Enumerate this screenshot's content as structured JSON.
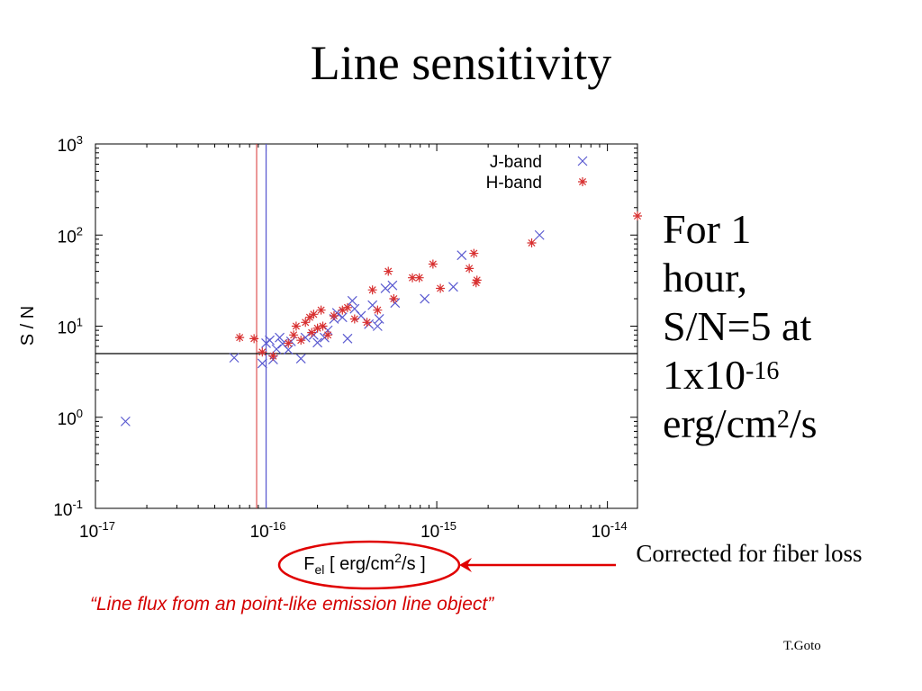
{
  "slide": {
    "title": "Line sensitivity",
    "note_lines": [
      "For 1",
      "hour,",
      "S/N=5 at"
    ],
    "note_flux": {
      "base": "1x10",
      "exp": "-16"
    },
    "note_unit": {
      "pre": "erg/cm",
      "exp": "2",
      "post": "/s"
    },
    "correction_note": "Corrected for fiber loss",
    "caption": "“Line flux from an point-like emission line object”",
    "credit": "T.Goto"
  },
  "colors": {
    "j_band": "#5a5ad0",
    "h_band": "#d83030",
    "annotation": "#e00000",
    "h_line": "#000000"
  },
  "chart_data": {
    "type": "scatter",
    "xlabel": {
      "main": "F",
      "sub": "el",
      "rest": " [ erg/cm",
      "sup": "2",
      "tail": "/s ]"
    },
    "ylabel": "S / N",
    "x_scale": "log",
    "y_scale": "log",
    "xlim": [
      1e-17,
      1.5e-14
    ],
    "ylim": [
      0.1,
      1000
    ],
    "x_ticks": [
      {
        "value": 1e-17,
        "base": "10",
        "exp": "-17"
      },
      {
        "value": 1e-16,
        "base": "10",
        "exp": "-16"
      },
      {
        "value": 1e-15,
        "base": "10",
        "exp": "-15"
      },
      {
        "value": 1e-14,
        "base": "10",
        "exp": "-14"
      }
    ],
    "y_ticks": [
      {
        "value": 0.1,
        "base": "10",
        "exp": "-1"
      },
      {
        "value": 1,
        "base": "10",
        "exp": "0"
      },
      {
        "value": 10,
        "base": "10",
        "exp": "1"
      },
      {
        "value": 100,
        "base": "10",
        "exp": "2"
      },
      {
        "value": 1000,
        "base": "10",
        "exp": "3"
      }
    ],
    "legend_position": "top-right",
    "reference_lines": {
      "horizontal_sn": 5,
      "vertical_j_flux": 1e-16,
      "vertical_h_flux": 8.8e-17
    },
    "series": [
      {
        "name": "J-band",
        "marker": "x",
        "points": [
          [
            1.5e-17,
            0.9
          ],
          [
            6.5e-17,
            4.5
          ],
          [
            9.5e-17,
            3.9
          ],
          [
            1e-16,
            6.5
          ],
          [
            1.05e-16,
            7.0
          ],
          [
            1.1e-16,
            4.3
          ],
          [
            1.15e-16,
            5.6
          ],
          [
            1.2e-16,
            7.5
          ],
          [
            1.25e-16,
            6.4
          ],
          [
            1.35e-16,
            5.5
          ],
          [
            1.4e-16,
            6.8
          ],
          [
            1.6e-16,
            4.4
          ],
          [
            1.7e-16,
            7.5
          ],
          [
            1.9e-16,
            8.0
          ],
          [
            2e-16,
            6.6
          ],
          [
            2.2e-16,
            7.5
          ],
          [
            2.3e-16,
            9.0
          ],
          [
            2.5e-16,
            12.0
          ],
          [
            2.6e-16,
            14.0
          ],
          [
            2.8e-16,
            12.5
          ],
          [
            3e-16,
            7.3
          ],
          [
            3.2e-16,
            19.0
          ],
          [
            3.3e-16,
            15.5
          ],
          [
            3.6e-16,
            13.0
          ],
          [
            4e-16,
            10.5
          ],
          [
            4.2e-16,
            17.0
          ],
          [
            4.5e-16,
            10.0
          ],
          [
            4.6e-16,
            12.0
          ],
          [
            5e-16,
            26.0
          ],
          [
            5.5e-16,
            28.0
          ],
          [
            5.7e-16,
            18.0
          ],
          [
            8.5e-16,
            20.0
          ],
          [
            1.25e-15,
            27.0
          ],
          [
            1.4e-15,
            60.0
          ],
          [
            4e-15,
            100.0
          ]
        ]
      },
      {
        "name": "H-band",
        "marker": "*",
        "points": [
          [
            7e-17,
            7.5
          ],
          [
            8.5e-17,
            7.3
          ],
          [
            9.5e-17,
            5.2
          ],
          [
            1.1e-16,
            4.7
          ],
          [
            1.35e-16,
            6.5
          ],
          [
            1.45e-16,
            8.0
          ],
          [
            1.5e-16,
            10.0
          ],
          [
            1.6e-16,
            7.0
          ],
          [
            1.7e-16,
            11.0
          ],
          [
            1.8e-16,
            12.5
          ],
          [
            1.85e-16,
            8.5
          ],
          [
            1.9e-16,
            13.5
          ],
          [
            2e-16,
            9.5
          ],
          [
            2.1e-16,
            15.0
          ],
          [
            2.15e-16,
            10.0
          ],
          [
            2.3e-16,
            8.0
          ],
          [
            2.5e-16,
            13.0
          ],
          [
            2.8e-16,
            15.0
          ],
          [
            3e-16,
            16.0
          ],
          [
            3.3e-16,
            12.0
          ],
          [
            3.9e-16,
            11.0
          ],
          [
            4.2e-16,
            25.0
          ],
          [
            4.5e-16,
            15.0
          ],
          [
            5.2e-16,
            40.0
          ],
          [
            5.6e-16,
            20.0
          ],
          [
            7.2e-16,
            34.0
          ],
          [
            7.9e-16,
            34.0
          ],
          [
            9.5e-16,
            48.0
          ],
          [
            1.05e-15,
            26.0
          ],
          [
            1.55e-15,
            43.0
          ],
          [
            1.65e-15,
            63.0
          ],
          [
            1.7e-15,
            30.0
          ],
          [
            1.72e-15,
            32.0
          ],
          [
            3.6e-15,
            82.0
          ],
          [
            1.5e-14,
            162.0
          ]
        ]
      }
    ]
  }
}
